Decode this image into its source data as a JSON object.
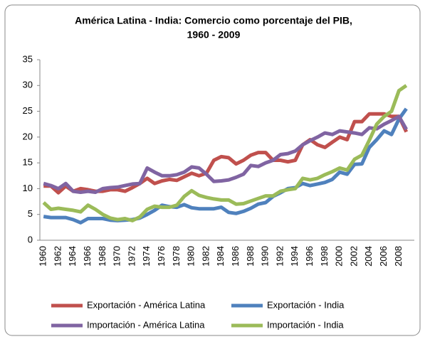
{
  "chart_data": {
    "type": "line",
    "title": [
      "América Latina - India: Comercio como porcentaje del PIB,",
      "1960 - 2009"
    ],
    "categories": [
      "1960",
      null,
      "1962",
      null,
      "1964",
      null,
      "1966",
      null,
      "1968",
      null,
      "1970",
      null,
      "1972",
      null,
      "1974",
      null,
      "1976",
      null,
      "1978",
      null,
      "1980",
      null,
      "1982",
      null,
      "1984",
      null,
      "1986",
      null,
      "1988",
      null,
      "1990",
      null,
      "1992",
      null,
      "1994",
      null,
      "1996",
      null,
      "1998",
      null,
      "2000",
      null,
      "2002",
      null,
      "2004",
      null,
      "2006",
      null,
      "2008",
      null
    ],
    "series": [
      {
        "name": "Exportación - América Latina",
        "color": "#c0504d",
        "values": [
          10.5,
          10.5,
          9.2,
          10.5,
          9.5,
          10,
          9.8,
          9.5,
          9.5,
          9.8,
          9.8,
          9.5,
          10.2,
          11,
          12,
          11,
          11.5,
          11.8,
          11.6,
          12.3,
          13,
          12.5,
          13,
          15.5,
          16.2,
          16,
          14.8,
          15.5,
          16.5,
          17,
          17,
          15.5,
          15.5,
          15.2,
          15.5,
          18.5,
          19.5,
          18.5,
          18,
          19,
          20,
          19.5,
          23,
          23,
          24.5,
          24.5,
          24.5,
          24,
          24,
          21
        ]
      },
      {
        "name": "Exportación - India",
        "color": "#4f81bd",
        "values": [
          4.6,
          4.4,
          4.4,
          4.4,
          4,
          3.4,
          4.2,
          4.2,
          4.2,
          3.9,
          3.8,
          3.9,
          4,
          4.3,
          5,
          5.8,
          6.8,
          6.5,
          6.4,
          6.9,
          6.3,
          6.1,
          6.1,
          6.1,
          6.4,
          5.4,
          5.2,
          5.6,
          6.2,
          7,
          7.3,
          8.5,
          9.2,
          10,
          10.2,
          11,
          10.6,
          10.9,
          11.2,
          11.8,
          13.2,
          12.8,
          14.7,
          14.8,
          18,
          19.5,
          21.2,
          20.5,
          23.5,
          25.5
        ]
      },
      {
        "name": "Importación - América Latina",
        "color": "#8064a2",
        "values": [
          11,
          10.6,
          10,
          11,
          9.5,
          9.3,
          9.5,
          9.3,
          10,
          10.2,
          10.3,
          10.6,
          10.9,
          11,
          14,
          13.2,
          12.5,
          12.5,
          12.7,
          13.2,
          14.2,
          14,
          12.8,
          11.4,
          11.5,
          11.7,
          12.2,
          12.8,
          14.5,
          14.3,
          15,
          15.5,
          16.6,
          16.8,
          17.3,
          18.5,
          19.3,
          20,
          20.8,
          20.5,
          21.2,
          21,
          20.8,
          20.5,
          21.8,
          21.6,
          22.5,
          23.2,
          24,
          21.5
        ]
      },
      {
        "name": "Importación - India",
        "color": "#9bbb59",
        "values": [
          7.3,
          6,
          6.2,
          6,
          5.8,
          5.5,
          6.8,
          6,
          5,
          4.3,
          4,
          4.2,
          3.8,
          4.5,
          6,
          6.6,
          6.4,
          6.4,
          6.8,
          8.5,
          9.6,
          8.7,
          8.3,
          8,
          7.8,
          7.8,
          7,
          7.1,
          7.6,
          8.1,
          8.6,
          8.6,
          9.5,
          9.8,
          10,
          12,
          11.7,
          12,
          12.7,
          13.3,
          14,
          13.6,
          15.7,
          16.5,
          19.4,
          22.5,
          24,
          25,
          29,
          30
        ]
      }
    ],
    "ylim": [
      0,
      35
    ],
    "yticks": [
      0,
      5,
      10,
      15,
      20,
      25,
      30,
      35
    ],
    "grid": false
  }
}
